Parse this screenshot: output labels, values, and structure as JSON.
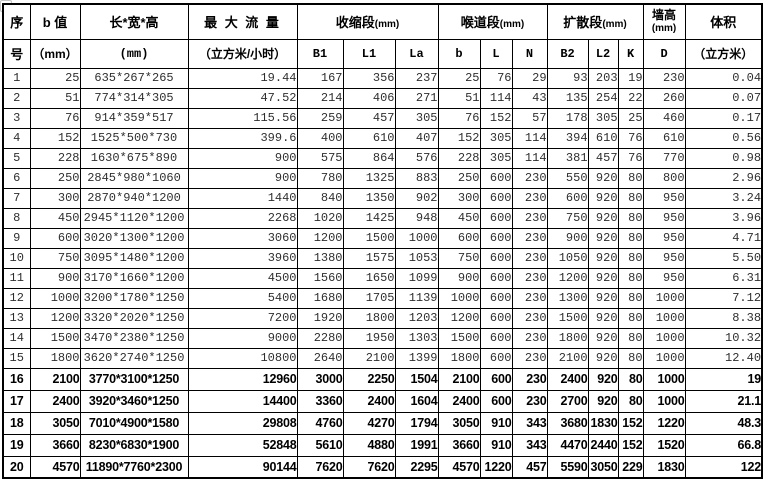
{
  "table": {
    "header": {
      "seq_top": "序",
      "seq_bottom": "号",
      "b_top": "b 值",
      "b_bottom": "（mm）",
      "dims_top": "长*宽*高",
      "dims_bottom": "(mm)",
      "flow_top": "最 大 流 量",
      "flow_bottom": "（立方米/小时）",
      "groups": [
        {
          "label": "收缩段",
          "unit": "(mm)"
        },
        {
          "label": "喉道段",
          "unit": "(mm)"
        },
        {
          "label": "扩散段",
          "unit": "(mm)"
        }
      ],
      "wall_top": "墙高",
      "wall_unit": "(mm)",
      "vol_top": "体积",
      "vol_bottom": "（立方米）",
      "sub_columns": [
        "B1",
        "L1",
        "La",
        "b",
        "L",
        "N",
        "B2",
        "L2",
        "K",
        "D"
      ]
    },
    "bold_from_seq": 16,
    "small_cells": {
      "18": [
        11,
        12
      ],
      "19": [
        11,
        12
      ],
      "20": [
        8,
        11,
        12
      ]
    },
    "rows": [
      [
        "1",
        "25",
        "635*267*265",
        "19.44",
        "167",
        "356",
        "237",
        "25",
        "76",
        "29",
        "93",
        "203",
        "19",
        "230",
        "0.04"
      ],
      [
        "2",
        "51",
        "774*314*305",
        "47.52",
        "214",
        "406",
        "271",
        "51",
        "114",
        "43",
        "135",
        "254",
        "22",
        "260",
        "0.07"
      ],
      [
        "3",
        "76",
        "914*359*517",
        "115.56",
        "259",
        "457",
        "305",
        "76",
        "152",
        "57",
        "178",
        "305",
        "25",
        "460",
        "0.17"
      ],
      [
        "4",
        "152",
        "1525*500*730",
        "399.6",
        "400",
        "610",
        "407",
        "152",
        "305",
        "114",
        "394",
        "610",
        "76",
        "610",
        "0.56"
      ],
      [
        "5",
        "228",
        "1630*675*890",
        "900",
        "575",
        "864",
        "576",
        "228",
        "305",
        "114",
        "381",
        "457",
        "76",
        "770",
        "0.98"
      ],
      [
        "6",
        "250",
        "2845*980*1060",
        "900",
        "780",
        "1325",
        "883",
        "250",
        "600",
        "230",
        "550",
        "920",
        "80",
        "800",
        "2.96"
      ],
      [
        "7",
        "300",
        "2870*940*1200",
        "1440",
        "840",
        "1350",
        "902",
        "300",
        "600",
        "230",
        "600",
        "920",
        "80",
        "950",
        "3.24"
      ],
      [
        "8",
        "450",
        "2945*1120*1200",
        "2268",
        "1020",
        "1425",
        "948",
        "450",
        "600",
        "230",
        "750",
        "920",
        "80",
        "950",
        "3.96"
      ],
      [
        "9",
        "600",
        "3020*1300*1200",
        "3060",
        "1200",
        "1500",
        "1000",
        "600",
        "600",
        "230",
        "900",
        "920",
        "80",
        "950",
        "4.71"
      ],
      [
        "10",
        "750",
        "3095*1480*1200",
        "3960",
        "1380",
        "1575",
        "1053",
        "750",
        "600",
        "230",
        "1050",
        "920",
        "80",
        "950",
        "5.50"
      ],
      [
        "11",
        "900",
        "3170*1660*1200",
        "4500",
        "1560",
        "1650",
        "1099",
        "900",
        "600",
        "230",
        "1200",
        "920",
        "80",
        "950",
        "6.31"
      ],
      [
        "12",
        "1000",
        "3200*1780*1250",
        "5400",
        "1680",
        "1705",
        "1139",
        "1000",
        "600",
        "230",
        "1300",
        "920",
        "80",
        "1000",
        "7.12"
      ],
      [
        "13",
        "1200",
        "3320*2020*1250",
        "7200",
        "1920",
        "1800",
        "1203",
        "1200",
        "600",
        "230",
        "1500",
        "920",
        "80",
        "1000",
        "8.38"
      ],
      [
        "14",
        "1500",
        "3470*2380*1250",
        "9000",
        "2280",
        "1950",
        "1303",
        "1500",
        "600",
        "230",
        "1800",
        "920",
        "80",
        "1000",
        "10.32"
      ],
      [
        "15",
        "1800",
        "3620*2740*1250",
        "10800",
        "2640",
        "2100",
        "1399",
        "1800",
        "600",
        "230",
        "2100",
        "920",
        "80",
        "1000",
        "12.40"
      ],
      [
        "16",
        "2100",
        "3770*3100*1250",
        "12960",
        "3000",
        "2250",
        "1504",
        "2100",
        "600",
        "230",
        "2400",
        "920",
        "80",
        "1000",
        "19"
      ],
      [
        "17",
        "2400",
        "3920*3460*1250",
        "14400",
        "3360",
        "2400",
        "1604",
        "2400",
        "600",
        "230",
        "2700",
        "920",
        "80",
        "1000",
        "21.1"
      ],
      [
        "18",
        "3050",
        "7010*4900*1580",
        "29808",
        "4760",
        "4270",
        "1794",
        "3050",
        "910",
        "343",
        "3680",
        "1830",
        "152",
        "1220",
        "48.3"
      ],
      [
        "19",
        "3660",
        "8230*6830*1900",
        "52848",
        "5610",
        "4880",
        "1991",
        "3660",
        "910",
        "343",
        "4470",
        "2440",
        "152",
        "1520",
        "66.8"
      ],
      [
        "20",
        "4570",
        "11890*7760*2300",
        "90144",
        "7620",
        "7620",
        "2295",
        "4570",
        "1220",
        "457",
        "5590",
        "3050",
        "229",
        "1830",
        "122"
      ]
    ]
  },
  "colors": {
    "border": "#000000",
    "text": "#2f2f2f",
    "bold_text": "#000000",
    "background": "#ffffff",
    "artifact": "#c2c2c2"
  }
}
